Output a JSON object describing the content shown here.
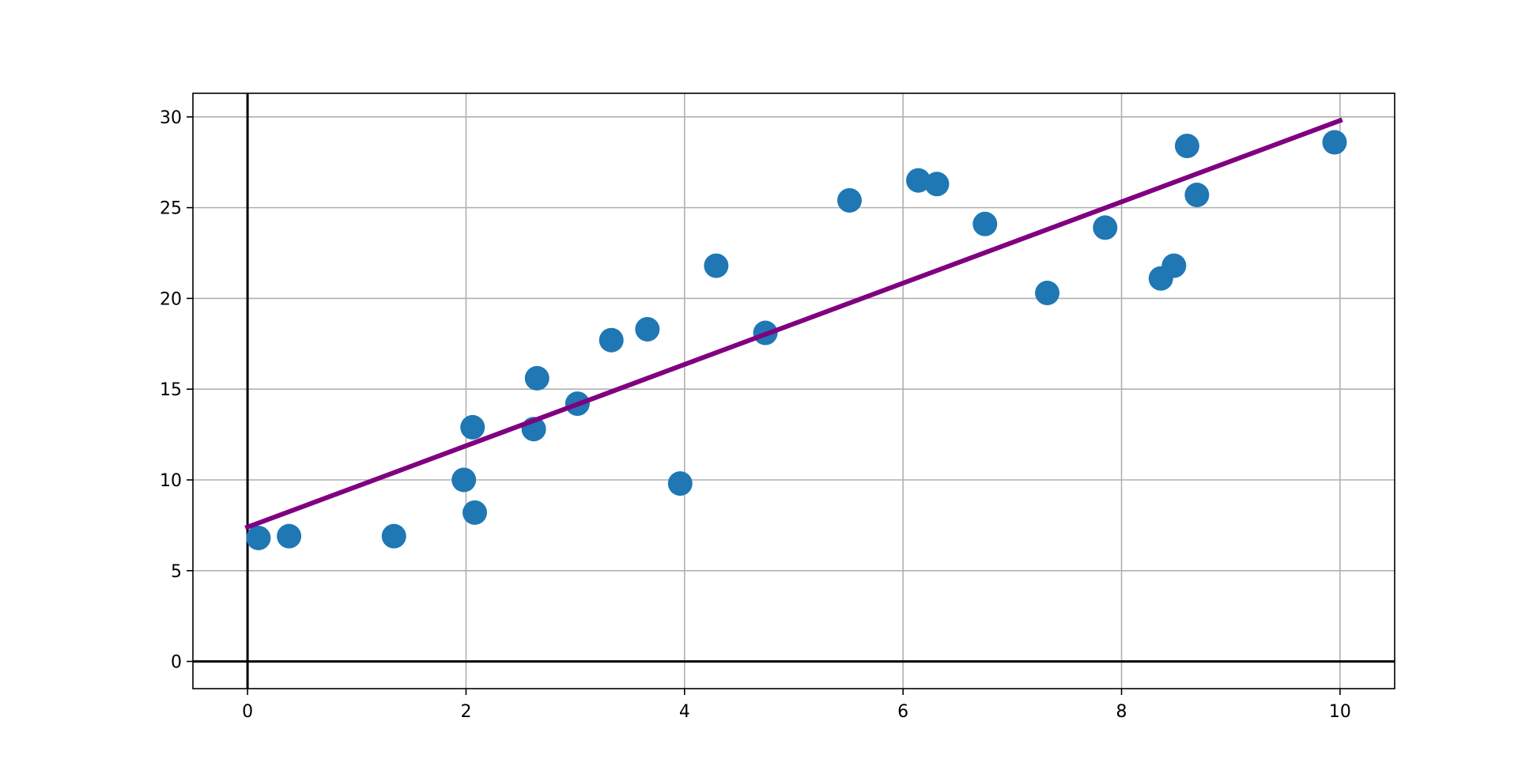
{
  "chart_data": {
    "type": "scatter",
    "title": "",
    "xlabel": "",
    "ylabel": "",
    "xlim": [
      -0.5,
      10.5
    ],
    "ylim": [
      -1.5,
      31.3
    ],
    "x_ticks": [
      0,
      2,
      4,
      6,
      8,
      10
    ],
    "y_ticks": [
      0,
      5,
      10,
      15,
      20,
      25,
      30
    ],
    "grid": true,
    "zero_lines": true,
    "series": [
      {
        "kind": "scatter",
        "color": "#1f77b4",
        "points": [
          {
            "x": 0.1,
            "y": 6.8
          },
          {
            "x": 0.38,
            "y": 6.9
          },
          {
            "x": 1.34,
            "y": 6.9
          },
          {
            "x": 1.98,
            "y": 10.0
          },
          {
            "x": 2.06,
            "y": 12.9
          },
          {
            "x": 2.08,
            "y": 8.2
          },
          {
            "x": 2.62,
            "y": 12.8
          },
          {
            "x": 2.65,
            "y": 15.6
          },
          {
            "x": 3.02,
            "y": 14.2
          },
          {
            "x": 3.33,
            "y": 17.7
          },
          {
            "x": 3.66,
            "y": 18.3
          },
          {
            "x": 3.96,
            "y": 9.8
          },
          {
            "x": 4.29,
            "y": 21.8
          },
          {
            "x": 4.74,
            "y": 18.1
          },
          {
            "x": 5.51,
            "y": 25.4
          },
          {
            "x": 6.14,
            "y": 26.5
          },
          {
            "x": 6.31,
            "y": 26.3
          },
          {
            "x": 6.75,
            "y": 24.1
          },
          {
            "x": 7.32,
            "y": 20.3
          },
          {
            "x": 7.85,
            "y": 23.9
          },
          {
            "x": 8.36,
            "y": 21.1
          },
          {
            "x": 8.48,
            "y": 21.8
          },
          {
            "x": 8.6,
            "y": 28.4
          },
          {
            "x": 8.69,
            "y": 25.7
          },
          {
            "x": 9.95,
            "y": 28.6
          }
        ]
      },
      {
        "kind": "line",
        "color": "#800080",
        "points": [
          {
            "x": 0,
            "y": 7.4
          },
          {
            "x": 10,
            "y": 29.8
          }
        ]
      }
    ]
  }
}
